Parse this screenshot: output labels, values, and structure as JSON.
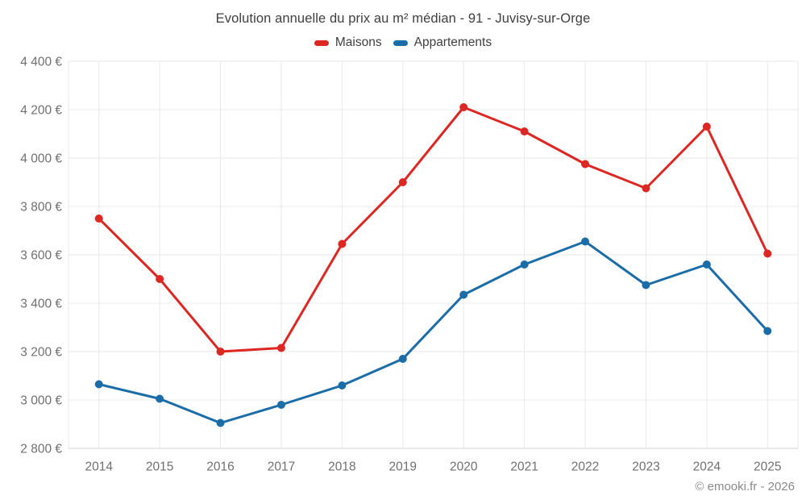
{
  "title": "Evolution annuelle du prix au m² médian - 91 - Juvisy-sur-Orge",
  "footer": "© emooki.fr - 2026",
  "legend": {
    "items": [
      {
        "label": "Maisons",
        "color": "#dc2723"
      },
      {
        "label": "Appartements",
        "color": "#1b6da8"
      }
    ]
  },
  "chart_data": {
    "type": "line",
    "title": "Evolution annuelle du prix au m² médian - 91 - Juvisy-sur-Orge",
    "categories": [
      "2014",
      "2015",
      "2016",
      "2017",
      "2018",
      "2019",
      "2020",
      "2021",
      "2022",
      "2023",
      "2024",
      "2025"
    ],
    "series": [
      {
        "name": "Maisons",
        "color": "#dc2723",
        "values": [
          3750,
          3500,
          3200,
          3215,
          3645,
          3900,
          4210,
          4110,
          3975,
          3875,
          4130,
          3605
        ]
      },
      {
        "name": "Appartements",
        "color": "#1b6da8",
        "values": [
          3065,
          3005,
          2905,
          2980,
          3060,
          3170,
          3435,
          3560,
          3655,
          3475,
          3560,
          3285
        ]
      }
    ],
    "xlabel": "",
    "ylabel": "",
    "ylim": [
      2800,
      4400
    ],
    "y_step": 200,
    "y_tick_labels": [
      "2 800 €",
      "3 000 €",
      "3 200 €",
      "3 400 €",
      "3 600 €",
      "3 800 €",
      "4 000 €",
      "4 200 €",
      "4 400 €"
    ],
    "grid": true,
    "legend_position": "top"
  },
  "colors": {
    "background": "#ffffff",
    "grid": "#e9e9e9",
    "axis_line": "#d4d4d4",
    "tick_text": "#707070",
    "title_text": "#3f3f3f",
    "footer_text": "#8a8a8a"
  }
}
